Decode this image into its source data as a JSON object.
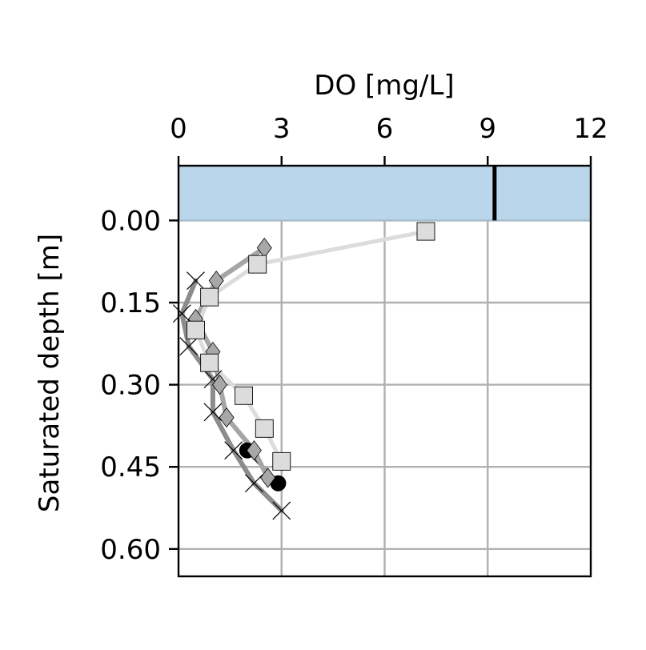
{
  "chart_data": {
    "type": "line",
    "title": "",
    "xlabel": "DO [mg/L]",
    "ylabel": "Saturated depth [m]",
    "x_axis_position": "top",
    "y_axis_inverted": true,
    "xlim": [
      0,
      12
    ],
    "ylim": [
      -0.1,
      0.65
    ],
    "x_ticks": [
      0,
      3,
      6,
      9,
      12
    ],
    "x_tick_labels": [
      "0",
      "3",
      "6",
      "9",
      "12"
    ],
    "y_ticks": [
      0.0,
      0.15,
      0.3,
      0.45,
      0.6
    ],
    "y_tick_labels": [
      "0.00",
      "0.15",
      "0.30",
      "0.45",
      "0.60"
    ],
    "grid": true,
    "legend": null,
    "water_band": {
      "depth_from": -0.1,
      "depth_to": 0.0,
      "color": "#b9d6ea"
    },
    "saturation_line": {
      "x": 9.2,
      "depth_from": -0.1,
      "depth_to": 0.0,
      "color": "#000000"
    },
    "series": [
      {
        "marker": "x",
        "line_color": "#8c8c8c",
        "marker_color": "#000000",
        "points": [
          [
            0.5,
            0.11
          ],
          [
            0.1,
            0.17
          ],
          [
            0.3,
            0.23
          ],
          [
            1.0,
            0.29
          ],
          [
            1.0,
            0.35
          ],
          [
            1.6,
            0.42
          ],
          [
            2.2,
            0.48
          ],
          [
            3.0,
            0.53
          ]
        ]
      },
      {
        "marker": "circle",
        "line_color": "#3a3a3a",
        "marker_color": "#000000",
        "points": [
          [
            2.0,
            0.42
          ],
          [
            2.9,
            0.48
          ]
        ]
      },
      {
        "marker": "diamond",
        "line_color": "#a6a6a6",
        "marker_color": "#a8a8a8",
        "points": [
          [
            2.5,
            0.05
          ],
          [
            1.1,
            0.11
          ],
          [
            0.5,
            0.18
          ],
          [
            1.0,
            0.24
          ],
          [
            1.2,
            0.3
          ],
          [
            1.4,
            0.36
          ],
          [
            2.2,
            0.42
          ],
          [
            2.6,
            0.47
          ]
        ]
      },
      {
        "marker": "square",
        "line_color": "#dcdcdc",
        "marker_color": "#dcdcdc",
        "points": [
          [
            7.2,
            0.02
          ],
          [
            2.3,
            0.08
          ],
          [
            0.9,
            0.14
          ],
          [
            0.5,
            0.2
          ],
          [
            0.9,
            0.26
          ],
          [
            1.9,
            0.32
          ],
          [
            2.5,
            0.38
          ],
          [
            3.0,
            0.44
          ]
        ]
      }
    ]
  }
}
